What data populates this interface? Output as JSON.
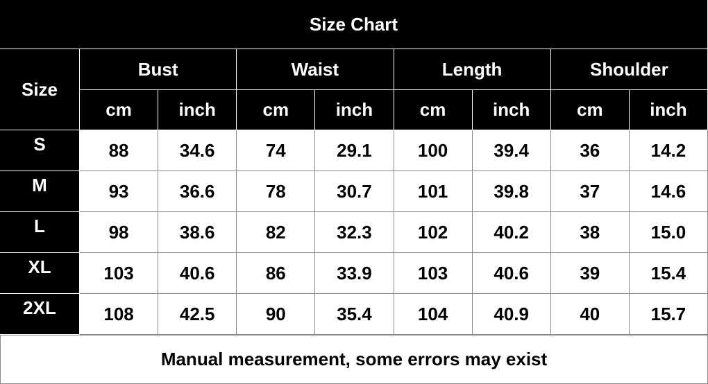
{
  "title": "Size Chart",
  "table": {
    "size_header": "Size",
    "groups": [
      {
        "name": "Bust",
        "units": [
          "cm",
          "inch"
        ]
      },
      {
        "name": "Waist",
        "units": [
          "cm",
          "inch"
        ]
      },
      {
        "name": "Length",
        "units": [
          "cm",
          "inch"
        ]
      },
      {
        "name": "Shoulder",
        "units": [
          "cm",
          "inch"
        ]
      }
    ],
    "rows": [
      {
        "size": "S",
        "values": [
          "88",
          "34.6",
          "74",
          "29.1",
          "100",
          "39.4",
          "36",
          "14.2"
        ]
      },
      {
        "size": "M",
        "values": [
          "93",
          "36.6",
          "78",
          "30.7",
          "101",
          "39.8",
          "37",
          "14.6"
        ]
      },
      {
        "size": "L",
        "values": [
          "98",
          "38.6",
          "82",
          "32.3",
          "102",
          "40.2",
          "38",
          "15.0"
        ]
      },
      {
        "size": "XL",
        "values": [
          "103",
          "40.6",
          "86",
          "33.9",
          "103",
          "40.6",
          "39",
          "15.4"
        ]
      },
      {
        "size": "2XL",
        "values": [
          "108",
          "42.5",
          "90",
          "35.4",
          "104",
          "40.9",
          "40",
          "15.7"
        ]
      }
    ]
  },
  "footer": "Manual measurement, some errors may exist"
}
